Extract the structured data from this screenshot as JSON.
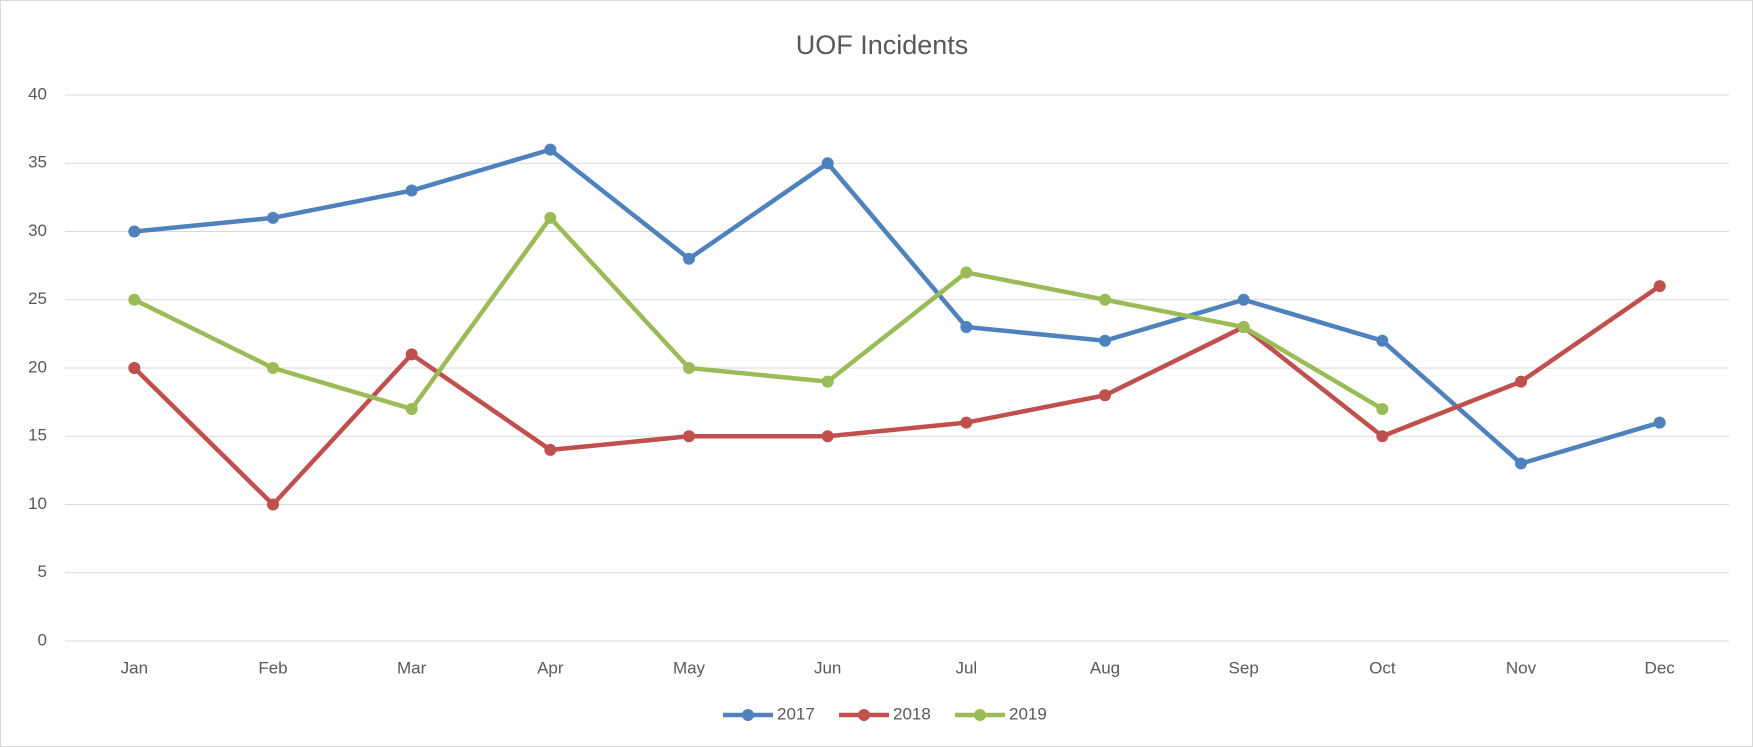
{
  "chart_data": {
    "type": "line",
    "title": "UOF Incidents",
    "categories": [
      "Jan",
      "Feb",
      "Mar",
      "Apr",
      "May",
      "Jun",
      "Jul",
      "Aug",
      "Sep",
      "Oct",
      "Nov",
      "Dec"
    ],
    "series": [
      {
        "name": "2017",
        "color": "#4f81bd",
        "values": [
          30,
          31,
          33,
          36,
          28,
          35,
          23,
          22,
          25,
          22,
          13,
          16
        ]
      },
      {
        "name": "2018",
        "color": "#c0504d",
        "values": [
          20,
          10,
          21,
          14,
          15,
          15,
          16,
          18,
          23,
          15,
          19,
          26
        ]
      },
      {
        "name": "2019",
        "color": "#9bbb59",
        "values": [
          25,
          20,
          17,
          31,
          20,
          19,
          27,
          25,
          23,
          17,
          null,
          null
        ]
      }
    ],
    "ylim": [
      0,
      40
    ],
    "yticks": [
      0,
      5,
      10,
      15,
      20,
      25,
      30,
      35,
      40
    ],
    "grid": true,
    "legend": "bottom"
  }
}
